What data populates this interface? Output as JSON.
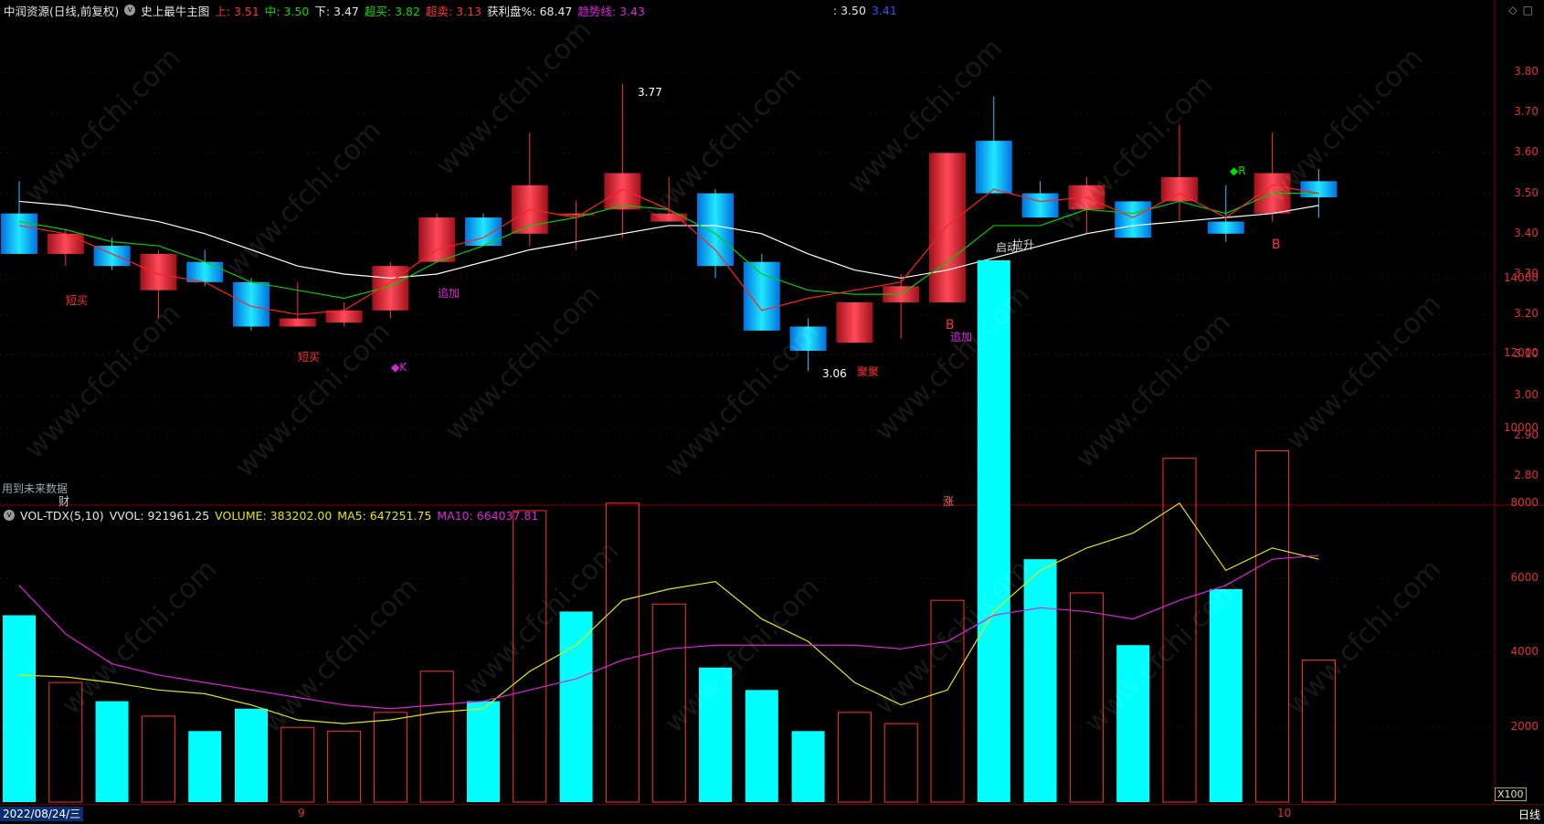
{
  "header": {
    "stock": "中润资源(日线,前复权)",
    "formula": "史上最牛主图",
    "upper_label": "上:",
    "upper_value": "3.51",
    "mid_label": "中:",
    "mid_value": "3.50",
    "lower_label": "下:",
    "lower_value": "3.47",
    "oversold_label": "超买:",
    "oversold_value": "3.82",
    "overbought_label": "超卖:",
    "overbought_value": "3.13",
    "profit_label": "获利盘%:",
    "profit_value": "68.47",
    "trend_label": "趋势线:",
    "trend_value": "3.43",
    "extra1": ": 3.50",
    "extra2": "3.41"
  },
  "volume_header": {
    "name": "VOL-TDX(5,10)",
    "vvol": "VVOL: 921961.25",
    "volume": "VOLUME: 383202.00",
    "ma5": "MA5: 647251.75",
    "ma10": "MA10: 664037.81"
  },
  "price_axis": [
    "3.80",
    "3.70",
    "3.60",
    "3.50",
    "3.40",
    "3.30",
    "3.20",
    "3.10",
    "3.00",
    "2.90",
    "2.80"
  ],
  "volume_axis": [
    "14000",
    "12000",
    "10000",
    "8000",
    "6000",
    "4000",
    "2000"
  ],
  "multiplier": "X100",
  "future_note": "用到未来数据",
  "event_tags": {
    "fin": "财",
    "zhang": "涨"
  },
  "footer": {
    "date": "2022/08/24/三",
    "tick_9": "9",
    "tick_10": "10",
    "period": "日线"
  },
  "annotations": {
    "high": "3.77",
    "low": "3.06",
    "short_buy": "短买",
    "add": "追加",
    "k": "◆K",
    "b": "B",
    "r": "◆R",
    "juji": "聚聚",
    "rise": "启动",
    "rise2": "拉升"
  },
  "watermark": "www.cfchi.com",
  "colors": {
    "up": "#e8283a",
    "down_cyan": "#00ffff",
    "ma_white": "#ffffff",
    "ma_green": "#00cc00",
    "ma_red": "#ff2020",
    "ma5": "#e6e600",
    "ma10": "#e020e0"
  },
  "chart_data": {
    "type": "candlestick",
    "candles": [
      {
        "o": 3.45,
        "h": 3.53,
        "l": 3.35,
        "c": 3.35
      },
      {
        "o": 3.35,
        "h": 3.41,
        "l": 3.32,
        "c": 3.4
      },
      {
        "o": 3.37,
        "h": 3.39,
        "l": 3.31,
        "c": 3.32
      },
      {
        "o": 3.26,
        "h": 3.36,
        "l": 3.19,
        "c": 3.35
      },
      {
        "o": 3.33,
        "h": 3.36,
        "l": 3.27,
        "c": 3.28
      },
      {
        "o": 3.28,
        "h": 3.29,
        "l": 3.16,
        "c": 3.17
      },
      {
        "o": 3.17,
        "h": 3.28,
        "l": 3.17,
        "c": 3.19
      },
      {
        "o": 3.18,
        "h": 3.23,
        "l": 3.17,
        "c": 3.21
      },
      {
        "o": 3.21,
        "h": 3.33,
        "l": 3.19,
        "c": 3.32
      },
      {
        "o": 3.33,
        "h": 3.45,
        "l": 3.33,
        "c": 3.44
      },
      {
        "o": 3.44,
        "h": 3.45,
        "l": 3.37,
        "c": 3.37
      },
      {
        "o": 3.4,
        "h": 3.65,
        "l": 3.37,
        "c": 3.52
      },
      {
        "o": 3.45,
        "h": 3.48,
        "l": 3.36,
        "c": 3.45
      },
      {
        "o": 3.46,
        "h": 3.77,
        "l": 3.39,
        "c": 3.55
      },
      {
        "o": 3.43,
        "h": 3.54,
        "l": 3.43,
        "c": 3.45
      },
      {
        "o": 3.5,
        "h": 3.51,
        "l": 3.29,
        "c": 3.32
      },
      {
        "o": 3.33,
        "h": 3.35,
        "l": 3.16,
        "c": 3.16
      },
      {
        "o": 3.17,
        "h": 3.19,
        "l": 3.06,
        "c": 3.11
      },
      {
        "o": 3.13,
        "h": 3.23,
        "l": 3.13,
        "c": 3.23
      },
      {
        "o": 3.23,
        "h": 3.3,
        "l": 3.14,
        "c": 3.27
      },
      {
        "o": 3.23,
        "h": 3.6,
        "l": 3.23,
        "c": 3.6
      },
      {
        "o": 3.63,
        "h": 3.74,
        "l": 3.5,
        "c": 3.5
      },
      {
        "o": 3.5,
        "h": 3.53,
        "l": 3.44,
        "c": 3.44
      },
      {
        "o": 3.46,
        "h": 3.54,
        "l": 3.4,
        "c": 3.52
      },
      {
        "o": 3.48,
        "h": 3.48,
        "l": 3.39,
        "c": 3.39
      },
      {
        "o": 3.48,
        "h": 3.67,
        "l": 3.43,
        "c": 3.54
      },
      {
        "o": 3.43,
        "h": 3.52,
        "l": 3.38,
        "c": 3.4
      },
      {
        "o": 3.45,
        "h": 3.65,
        "l": 3.43,
        "c": 3.55
      },
      {
        "o": 3.53,
        "h": 3.56,
        "l": 3.44,
        "c": 3.49
      }
    ],
    "volume": [
      5000,
      3200,
      2700,
      2300,
      1900,
      2500,
      2000,
      1900,
      2400,
      3500,
      2700,
      7800,
      5100,
      8000,
      5300,
      3600,
      3000,
      1900,
      2400,
      2100,
      5400,
      14500,
      6500,
      5600,
      4200,
      9200,
      5700,
      9400,
      3800
    ],
    "vol_up": [
      false,
      true,
      false,
      true,
      false,
      false,
      true,
      true,
      true,
      true,
      false,
      true,
      false,
      true,
      true,
      false,
      false,
      false,
      true,
      true,
      true,
      false,
      false,
      true,
      false,
      true,
      false,
      true,
      true
    ],
    "ma5": [
      3400,
      3350,
      3200,
      3000,
      2900,
      2600,
      2200,
      2100,
      2200,
      2400,
      2500,
      3500,
      4200,
      5400,
      5700,
      5900,
      4900,
      4300,
      3200,
      2600,
      3000,
      5100,
      6200,
      6800,
      7200,
      8000,
      6200,
      6800,
      6500
    ],
    "ma10": [
      5800,
      4500,
      3700,
      3400,
      3200,
      3000,
      2800,
      2600,
      2500,
      2600,
      2700,
      3000,
      3300,
      3800,
      4100,
      4200,
      4200,
      4200,
      4200,
      4100,
      4300,
      5000,
      5200,
      5100,
      4900,
      5400,
      5800,
      6500,
      6600
    ],
    "line_white": [
      3.48,
      3.47,
      3.45,
      3.43,
      3.4,
      3.36,
      3.32,
      3.3,
      3.29,
      3.3,
      3.33,
      3.36,
      3.38,
      3.4,
      3.42,
      3.42,
      3.4,
      3.35,
      3.31,
      3.29,
      3.31,
      3.34,
      3.37,
      3.4,
      3.42,
      3.43,
      3.44,
      3.45,
      3.47
    ],
    "line_green": [
      3.43,
      3.41,
      3.38,
      3.37,
      3.33,
      3.28,
      3.26,
      3.24,
      3.27,
      3.33,
      3.37,
      3.42,
      3.44,
      3.47,
      3.46,
      3.4,
      3.3,
      3.26,
      3.25,
      3.25,
      3.33,
      3.42,
      3.42,
      3.46,
      3.45,
      3.48,
      3.45,
      3.5,
      3.5
    ],
    "line_red": [
      3.42,
      3.4,
      3.35,
      3.3,
      3.28,
      3.22,
      3.2,
      3.21,
      3.28,
      3.36,
      3.39,
      3.46,
      3.44,
      3.51,
      3.46,
      3.36,
      3.21,
      3.24,
      3.26,
      3.28,
      3.42,
      3.51,
      3.48,
      3.49,
      3.44,
      3.5,
      3.44,
      3.52,
      3.5
    ]
  }
}
